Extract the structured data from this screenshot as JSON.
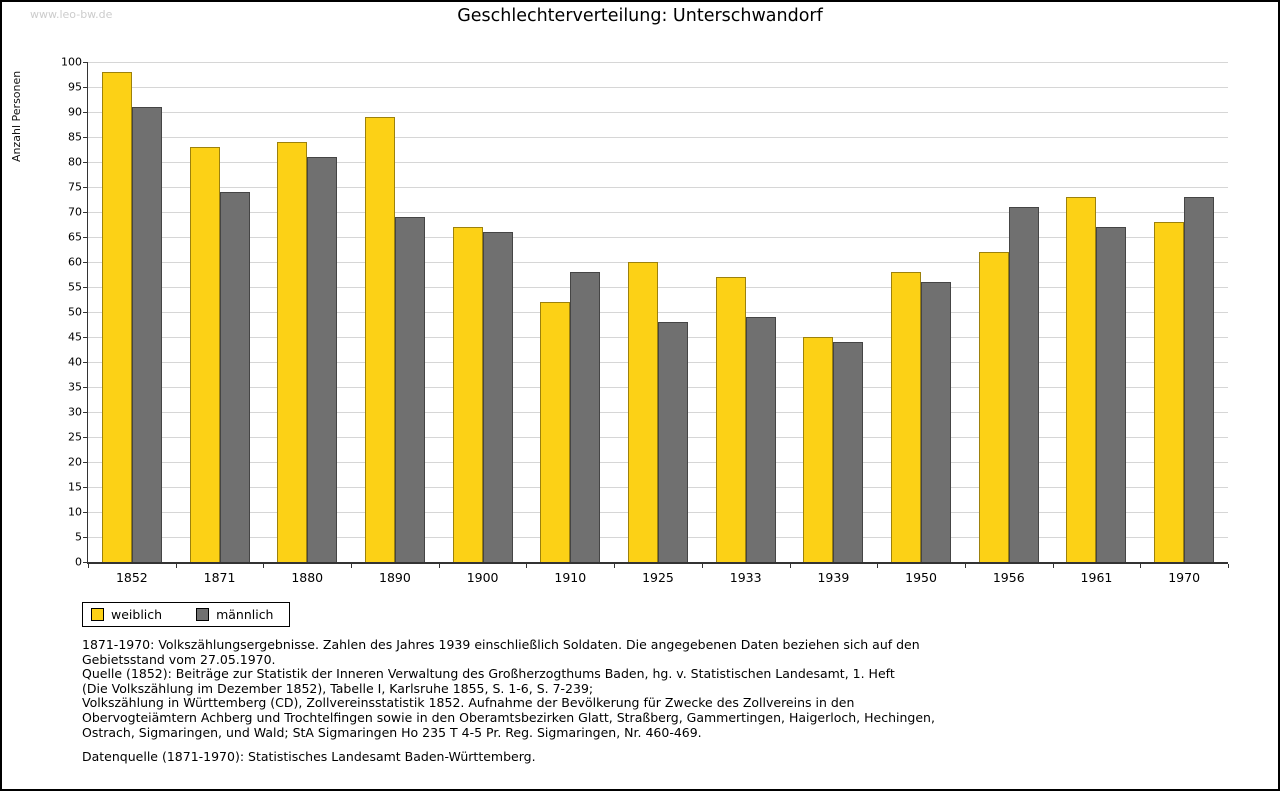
{
  "page": {
    "watermark": "www.leo-bw.de"
  },
  "chart_data": {
    "type": "bar",
    "title": "Geschlechterverteilung: Unterschwandorf",
    "xlabel": "",
    "ylabel": "Anzahl Personen",
    "ylim": [
      0,
      100
    ],
    "ytick_step": 5,
    "grid": true,
    "legend_position": "bottom-left",
    "bar_border_color": "rgba(0,0,0,0.38)",
    "gridline_color": "#d6d6d6",
    "categories": [
      "1852",
      "1871",
      "1880",
      "1890",
      "1900",
      "1910",
      "1925",
      "1933",
      "1939",
      "1950",
      "1956",
      "1961",
      "1970"
    ],
    "series": [
      {
        "name": "weiblich",
        "color": "#fcd116",
        "values": [
          98,
          83,
          84,
          89,
          67,
          52,
          60,
          57,
          45,
          58,
          62,
          73,
          68
        ]
      },
      {
        "name": "männlich",
        "color": "#707070",
        "values": [
          91,
          74,
          81,
          69,
          66,
          58,
          48,
          49,
          44,
          56,
          71,
          67,
          73
        ]
      }
    ]
  },
  "footnotes": {
    "lines": [
      "1871-1970: Volkszählungsergebnisse. Zahlen des Jahres 1939 einschließlich Soldaten. Die angegebenen Daten beziehen sich auf den",
      "Gebietsstand vom 27.05.1970.",
      "Quelle (1852): Beiträge zur Statistik der Inneren Verwaltung des Großherzogthums Baden, hg. v. Statistischen Landesamt, 1. Heft",
      "(Die Volkszählung im Dezember 1852), Tabelle I, Karlsruhe 1855, S. 1-6, S. 7-239;",
      "Volkszählung in Württemberg (CD), Zollvereinsstatistik 1852. Aufnahme der Bevölkerung für Zwecke des Zollvereins in den",
      "Obervogteiämtern Achberg und Trochtelfingen sowie in den Oberamtsbezirken Glatt, Straßberg, Gammertingen, Haigerloch, Hechingen,",
      "Ostrach, Sigmaringen, und Wald; StA Sigmaringen Ho 235 T 4-5 Pr. Reg. Sigmaringen, Nr. 460-469."
    ],
    "source": "Datenquelle (1871-1970): Statistisches Landesamt Baden-Württemberg."
  }
}
